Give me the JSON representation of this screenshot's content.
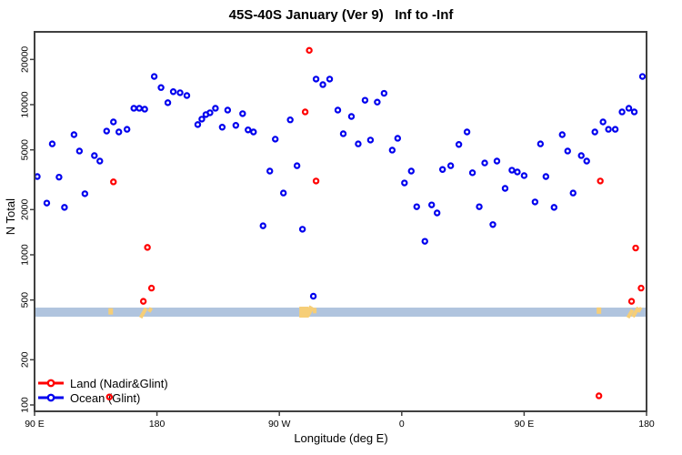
{
  "title": "45S-40S January (Ver 9)   Inf to -Inf",
  "axes": {
    "x": {
      "label": "Longitude (deg E)",
      "ticks": [
        {
          "lon": 90,
          "label": "90 E"
        },
        {
          "lon": 180,
          "label": "180"
        },
        {
          "lon": 270,
          "label": "90 W"
        },
        {
          "lon": 360,
          "label": "0"
        },
        {
          "lon": 450,
          "label": "90 E"
        },
        {
          "lon": 540,
          "label": "180"
        }
      ]
    },
    "y": {
      "label": "N Total",
      "scale": "log",
      "ticks": [
        {
          "n": 100,
          "label": "100"
        },
        {
          "n": 200,
          "label": "200"
        },
        {
          "n": 500,
          "label": "500"
        },
        {
          "n": 1000,
          "label": "1000"
        },
        {
          "n": 2000,
          "label": "2000"
        },
        {
          "n": 5000,
          "label": "5000"
        },
        {
          "n": 10000,
          "label": "10000"
        },
        {
          "n": 20000,
          "label": "20000"
        }
      ]
    }
  },
  "legend": {
    "items": [
      {
        "label": "Land (Nadir&Glint)",
        "color": "#FF0000"
      },
      {
        "label": "Ocean (Glint)",
        "color": "#0000EE"
      }
    ]
  },
  "colors": {
    "land": "#FF0000",
    "ocean": "#0000EE",
    "band": "#B0C4DE",
    "land_mark": "#F6CE77",
    "frame": "#404040",
    "text": "#000000"
  },
  "chart_data": {
    "type": "scatter",
    "xlim": [
      90,
      540
    ],
    "ylim_log": [
      100,
      20000
    ],
    "title": "45S-40S January (Ver 9)   Inf to -Inf",
    "xlabel": "Longitude (deg E)",
    "ylabel": "N Total",
    "grid": false,
    "legend_position": "bottom-left-inside",
    "band": {
      "n_range": [
        387,
        445
      ],
      "color": "#B0C4DE"
    },
    "series": [
      {
        "name": "Land (Nadir&Glint)",
        "color": "#FF0000",
        "points": [
          [
            292,
            23000
          ],
          [
            289,
            8950
          ],
          [
            297,
            3100
          ],
          [
            148,
            3060
          ],
          [
            506,
            3100
          ],
          [
            173,
            1120
          ],
          [
            532,
            1110
          ],
          [
            176,
            600
          ],
          [
            536,
            600
          ],
          [
            170,
            490
          ],
          [
            529,
            490
          ],
          [
            145,
            113
          ],
          [
            505,
            115
          ]
        ]
      },
      {
        "name": "Ocean (Glint)",
        "color": "#0000EE",
        "points": [
          [
            178,
            15400
          ],
          [
            183,
            13000
          ],
          [
            192,
            12200
          ],
          [
            197,
            12000
          ],
          [
            202,
            11500
          ],
          [
            188,
            10300
          ],
          [
            163,
            9460
          ],
          [
            167,
            9460
          ],
          [
            171,
            9330
          ],
          [
            148,
            7670
          ],
          [
            143,
            6670
          ],
          [
            152,
            6580
          ],
          [
            158,
            6850
          ],
          [
            119,
            6310
          ],
          [
            103,
            5480
          ],
          [
            123,
            4910
          ],
          [
            134,
            4580
          ],
          [
            138,
            4210
          ],
          [
            92,
            3320
          ],
          [
            108,
            3290
          ],
          [
            127,
            2550
          ],
          [
            99,
            2210
          ],
          [
            112,
            2070
          ],
          [
            297,
            14800
          ],
          [
            302,
            13600
          ],
          [
            307,
            14800
          ],
          [
            223,
            9460
          ],
          [
            232,
            9200
          ],
          [
            243,
            8710
          ],
          [
            219,
            8830
          ],
          [
            216,
            8590
          ],
          [
            213,
            8010
          ],
          [
            210,
            7370
          ],
          [
            228,
            7080
          ],
          [
            238,
            7280
          ],
          [
            247,
            6790
          ],
          [
            251,
            6580
          ],
          [
            267,
            5890
          ],
          [
            278,
            7920
          ],
          [
            313,
            9200
          ],
          [
            317,
            6400
          ],
          [
            263,
            3610
          ],
          [
            283,
            3920
          ],
          [
            273,
            2580
          ],
          [
            258,
            1560
          ],
          [
            287,
            1480
          ],
          [
            347,
            11900
          ],
          [
            333,
            10700
          ],
          [
            342,
            10400
          ],
          [
            323,
            8340
          ],
          [
            328,
            5480
          ],
          [
            337,
            5810
          ],
          [
            357,
            5970
          ],
          [
            353,
            4980
          ],
          [
            367,
            3610
          ],
          [
            362,
            3010
          ],
          [
            390,
            3700
          ],
          [
            396,
            3920
          ],
          [
            408,
            6580
          ],
          [
            402,
            5430
          ],
          [
            412,
            3520
          ],
          [
            421,
            4090
          ],
          [
            430,
            4210
          ],
          [
            371,
            2090
          ],
          [
            382,
            2150
          ],
          [
            386,
            1900
          ],
          [
            417,
            2090
          ],
          [
            427,
            1590
          ],
          [
            537,
            15400
          ],
          [
            522,
            8950
          ],
          [
            527,
            9460
          ],
          [
            531,
            8950
          ],
          [
            508,
            7670
          ],
          [
            502,
            6580
          ],
          [
            512,
            6850
          ],
          [
            517,
            6850
          ],
          [
            478,
            6310
          ],
          [
            462,
            5480
          ],
          [
            482,
            4910
          ],
          [
            492,
            4580
          ],
          [
            496,
            4210
          ],
          [
            441,
            3660
          ],
          [
            445,
            3560
          ],
          [
            450,
            3370
          ],
          [
            466,
            3320
          ],
          [
            436,
            2770
          ],
          [
            486,
            2580
          ],
          [
            458,
            2250
          ],
          [
            472,
            2070
          ],
          [
            295,
            530
          ],
          [
            377,
            1230
          ]
        ]
      }
    ],
    "land_marks": [
      {
        "lon": 146,
        "n": 420,
        "w": 5,
        "h": 7,
        "rot": 0
      },
      {
        "lon": 170,
        "n": 410,
        "w": 4,
        "h": 12,
        "rot": 30
      },
      {
        "lon": 175,
        "n": 430,
        "w": 4,
        "h": 5,
        "rot": 30
      },
      {
        "lon": 288,
        "n": 415,
        "w": 10,
        "h": 12,
        "rot": 0
      },
      {
        "lon": 292,
        "n": 420,
        "w": 6,
        "h": 12,
        "rot": 30
      },
      {
        "lon": 296,
        "n": 425,
        "w": 4,
        "h": 6,
        "rot": 0
      },
      {
        "lon": 505,
        "n": 425,
        "w": 5,
        "h": 7,
        "rot": 0
      },
      {
        "lon": 528,
        "n": 405,
        "w": 4,
        "h": 10,
        "rot": 30
      },
      {
        "lon": 532,
        "n": 415,
        "w": 4,
        "h": 12,
        "rot": 30
      },
      {
        "lon": 535,
        "n": 430,
        "w": 3,
        "h": 6,
        "rot": 30
      }
    ]
  }
}
